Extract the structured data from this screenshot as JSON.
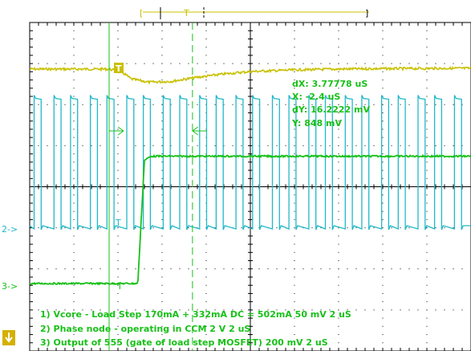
{
  "chart_data": {
    "type": "line",
    "title": "",
    "xlabel": "",
    "ylabel": "",
    "grid": true,
    "x_unit": "uS",
    "x_range_us": [
      -6.0,
      14.0
    ],
    "series": [
      {
        "name": "1) Vcore - Load Step 170mA + 332mA DC = 502mA  50 mV   2 uS",
        "color": "#c8c000",
        "points": [
          [
            -6.0,
            0.0
          ],
          [
            -2.4,
            0.0
          ],
          [
            -1.8,
            -4.0
          ],
          [
            -1.4,
            -12.0
          ],
          [
            -0.6,
            -16.0
          ],
          [
            0.4,
            -15.0
          ],
          [
            1.6,
            -10.0
          ],
          [
            2.8,
            -6.0
          ],
          [
            4.0,
            -3.0
          ],
          [
            6.0,
            -1.0
          ],
          [
            8.0,
            0.0
          ],
          [
            10.0,
            0.5
          ],
          [
            14.0,
            1.0
          ]
        ],
        "y_unit": "mV",
        "volts_per_div": "50 mV"
      },
      {
        "name": "2) Phase node - operating in CCM  2  V   2 uS",
        "color": "#20b8c8",
        "period_us": [
          0.9,
          0.75
        ],
        "high_level_v": 6.2,
        "low_level_v": 0.0,
        "first_edge_us": -5.8,
        "y_unit": "V",
        "volts_per_div": "2 V"
      },
      {
        "name": "3) Output of 555 (gate of load step MOSFET)  200 mV   2 uS",
        "color": "#18c018",
        "points": [
          [
            -6.0,
            0.0
          ],
          [
            -1.9,
            0.0
          ],
          [
            -1.1,
            0.0
          ],
          [
            -0.8,
            0.6
          ],
          [
            -0.5,
            0.62
          ],
          [
            14.0,
            0.62
          ]
        ],
        "y_unit": "V",
        "volts_per_div": "200 mV"
      }
    ],
    "cursors": {
      "dX": "dX: 3.77778 uS",
      "X": "X: -2.4 uS",
      "dY": "dY: 16.2222 mV",
      "Y": "Y: 848 mV",
      "x1_us": -2.4,
      "x2_us": 1.37778
    },
    "channel_markers": {
      "ch1": "T",
      "ch2": "2->",
      "ch3": "3->",
      "ch2_inner": "T",
      "ch3_inner": "T"
    },
    "trigger_bar": {
      "left_bracket": "[",
      "right_bracket": "]",
      "t_label": "T"
    }
  },
  "legend": {
    "line1": "1) Vcore - Load Step 170mA + 332mA DC = 502mA  50 mV   2 uS",
    "line2": "2) Phase node - operating in CCM  2  V   2 uS",
    "line3": "3) Output of 555 (gate of load step MOSFET)  200 mV   2 uS"
  },
  "colors": {
    "ch1": "#c8c000",
    "ch2": "#20b8c8",
    "ch3": "#18c018",
    "grid": "#000000",
    "arrow_badge": "#d4b000"
  },
  "icons": {
    "down_arrow": "down-arrow-icon"
  }
}
